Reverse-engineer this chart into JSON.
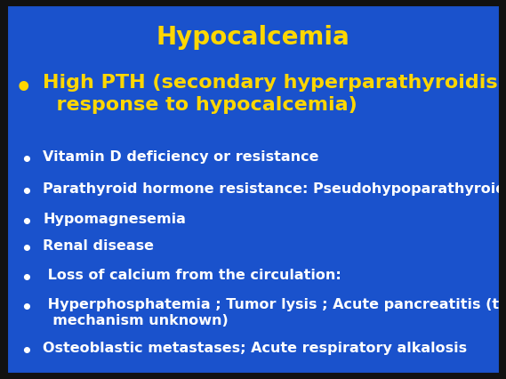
{
  "title": "Hypocalcemia",
  "title_color": "#FFD700",
  "title_fontsize": 20,
  "background_color": "#1A52CC",
  "bullet_color": "#FFFFFF",
  "bullet1_color": "#FFD700",
  "bullet1_line1": "High PTH (secondary hyperparathyroidism in",
  "bullet1_line2": "  response to hypocalcemia)",
  "bullet1_fontsize": 16,
  "bullets": [
    "Vitamin D deficiency or resistance",
    "Parathyroid hormone resistance: Pseudohypoparathyroidism",
    "Hypomagnesemia",
    "Renal disease",
    " Loss of calcium from the circulation:",
    " Hyperphosphatemia ; Tumor lysis ; Acute pancreatitis (the\n  mechanism unknown)",
    "Osteoblastic metastases; Acute respiratory alkalosis"
  ],
  "bullet_fontsize": 11.5,
  "border_color": "#111111",
  "border_thickness": 8
}
